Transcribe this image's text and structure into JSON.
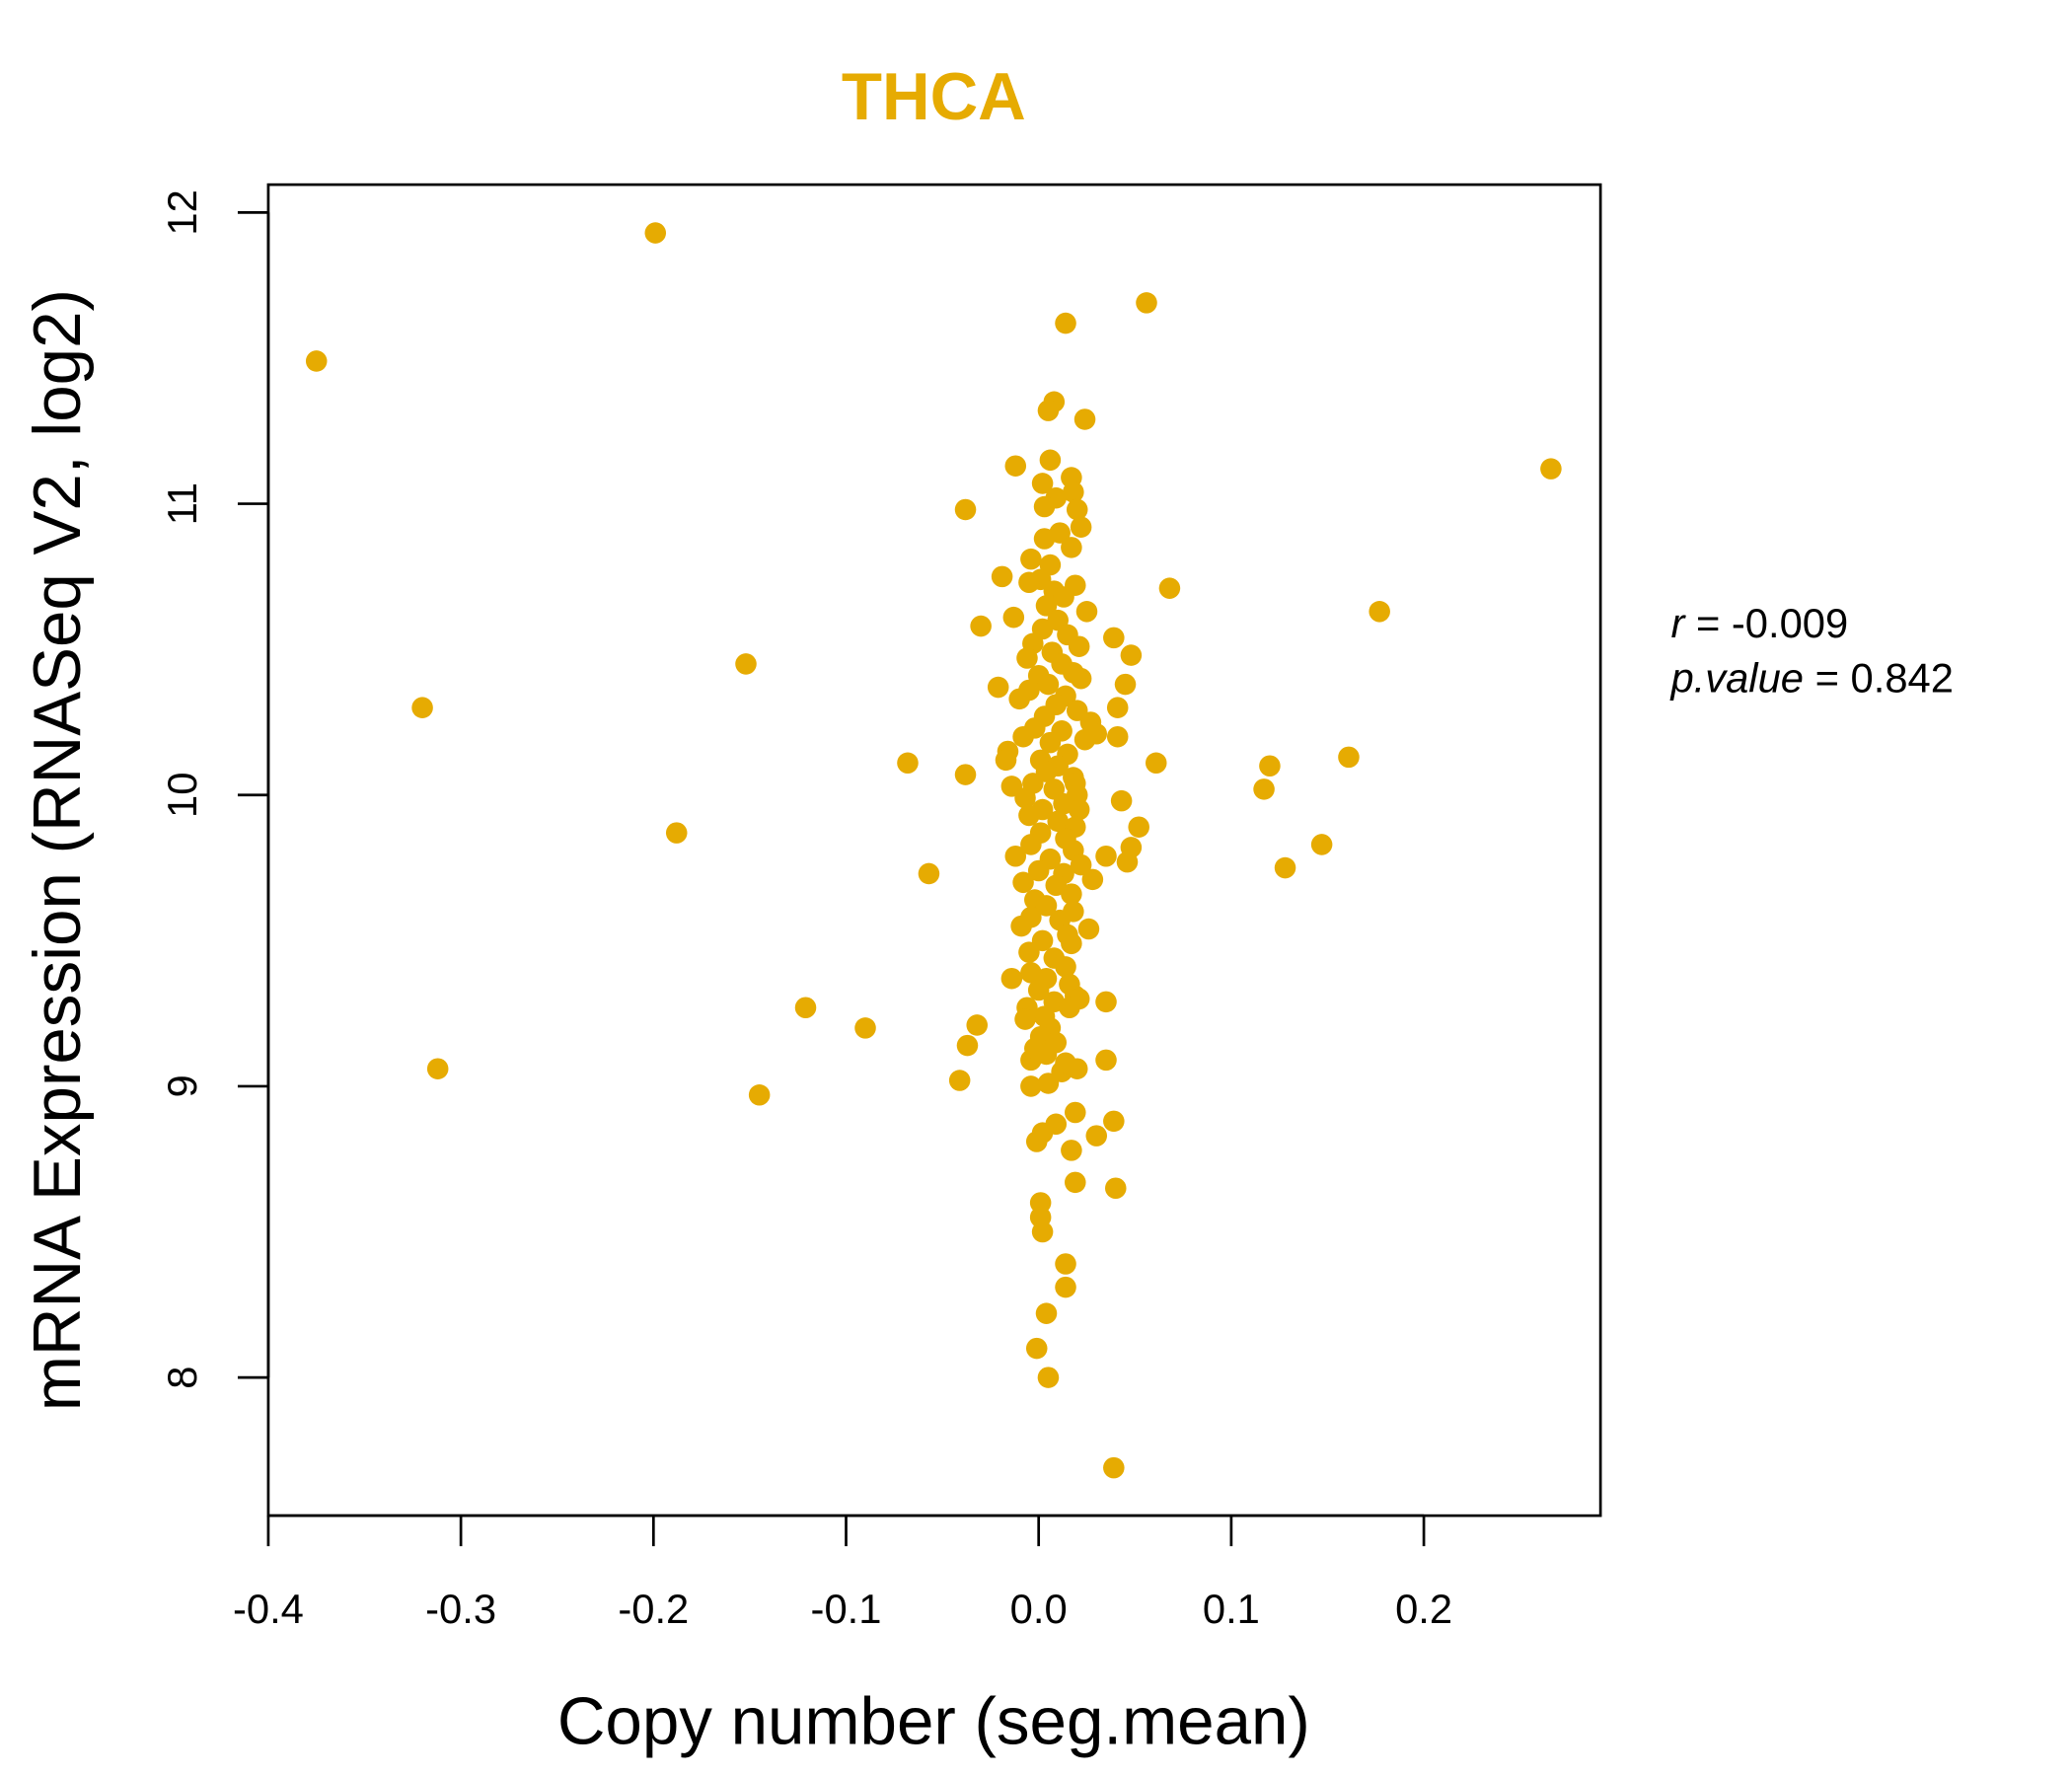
{
  "chart_data": {
    "type": "scatter",
    "title": "THCA",
    "xlabel": "Copy number (seg.mean)",
    "ylabel": "mRNA Expression (RNASeq V2, log2)",
    "xlim": [
      -0.4,
      0.29
    ],
    "ylim": [
      7.55,
      12.1
    ],
    "xticks": [
      -0.4,
      -0.3,
      -0.2,
      -0.1,
      0.0,
      0.1,
      0.2
    ],
    "xtick_labels": [
      "-0.4",
      "-0.3",
      "-0.2",
      "-0.1",
      "0.0",
      "0.1",
      "0.2"
    ],
    "yticks": [
      8,
      9,
      10,
      11,
      12
    ],
    "ytick_labels": [
      "8",
      "9",
      "10",
      "11",
      "12"
    ],
    "grid": false,
    "point_color": "#E6AB02",
    "stats": {
      "r_label": "r",
      "r_value": "-0.009",
      "p_label": "p.value",
      "p_value": "0.842"
    },
    "points": [
      [
        -0.375,
        11.49
      ],
      [
        -0.199,
        11.93
      ],
      [
        -0.32,
        10.3
      ],
      [
        -0.312,
        9.06
      ],
      [
        -0.188,
        9.87
      ],
      [
        -0.152,
        10.45
      ],
      [
        -0.145,
        8.97
      ],
      [
        -0.121,
        9.27
      ],
      [
        -0.09,
        9.2
      ],
      [
        -0.068,
        10.11
      ],
      [
        -0.057,
        9.73
      ],
      [
        -0.038,
        10.98
      ],
      [
        -0.038,
        10.07
      ],
      [
        -0.041,
        9.02
      ],
      [
        -0.037,
        9.14
      ],
      [
        -0.032,
        9.21
      ],
      [
        -0.03,
        10.58
      ],
      [
        -0.019,
        10.75
      ],
      [
        -0.021,
        10.37
      ],
      [
        -0.012,
        11.13
      ],
      [
        0.056,
        11.69
      ],
      [
        0.014,
        11.62
      ],
      [
        0.008,
        11.35
      ],
      [
        0.005,
        11.32
      ],
      [
        0.024,
        11.29
      ],
      [
        0.006,
        11.15
      ],
      [
        0.017,
        11.09
      ],
      [
        0.068,
        10.71
      ],
      [
        0.039,
        10.54
      ],
      [
        0.048,
        10.48
      ],
      [
        0.045,
        10.38
      ],
      [
        0.041,
        10.3
      ],
      [
        0.041,
        10.2
      ],
      [
        0.061,
        10.11
      ],
      [
        0.043,
        9.98
      ],
      [
        0.052,
        9.89
      ],
      [
        0.048,
        9.82
      ],
      [
        0.046,
        9.77
      ],
      [
        0.035,
        9.79
      ],
      [
        0.028,
        9.71
      ],
      [
        0.026,
        9.54
      ],
      [
        0.035,
        9.29
      ],
      [
        0.035,
        9.09
      ],
      [
        0.039,
        8.88
      ],
      [
        0.03,
        8.83
      ],
      [
        0.04,
        8.65
      ],
      [
        0.039,
        7.69
      ],
      [
        0.266,
        11.12
      ],
      [
        0.177,
        10.63
      ],
      [
        0.161,
        10.13
      ],
      [
        0.12,
        10.1
      ],
      [
        0.117,
        10.02
      ],
      [
        0.147,
        9.83
      ],
      [
        0.128,
        9.75
      ],
      [
        0.019,
        8.91
      ],
      [
        0.017,
        8.78
      ],
      [
        0.019,
        8.67
      ],
      [
        0.001,
        8.6
      ],
      [
        0.001,
        8.55
      ],
      [
        0.002,
        8.5
      ],
      [
        0.014,
        8.39
      ],
      [
        0.014,
        8.31
      ],
      [
        0.004,
        8.22
      ],
      [
        -0.001,
        8.1
      ],
      [
        0.005,
        8.0
      ],
      [
        -0.001,
        8.81
      ],
      [
        0.009,
        8.87
      ],
      [
        0.002,
        8.84
      ],
      [
        -0.004,
        9.0
      ],
      [
        0.005,
        9.01
      ],
      [
        0.012,
        9.05
      ],
      [
        0.02,
        9.06
      ],
      [
        0.014,
        9.08
      ],
      [
        -0.004,
        9.09
      ],
      [
        0.002,
        11.07
      ],
      [
        0.009,
        11.02
      ],
      [
        0.003,
        10.99
      ],
      [
        0.018,
        11.04
      ],
      [
        0.02,
        10.98
      ],
      [
        0.022,
        10.92
      ],
      [
        0.011,
        10.9
      ],
      [
        0.003,
        10.88
      ],
      [
        0.017,
        10.85
      ],
      [
        -0.004,
        10.81
      ],
      [
        0.006,
        10.79
      ],
      [
        0.001,
        10.74
      ],
      [
        0.019,
        10.72
      ],
      [
        0.008,
        10.7
      ],
      [
        -0.005,
        10.73
      ],
      [
        0.013,
        10.68
      ],
      [
        0.004,
        10.65
      ],
      [
        0.025,
        10.63
      ],
      [
        -0.013,
        10.61
      ],
      [
        0.01,
        10.6
      ],
      [
        0.002,
        10.57
      ],
      [
        0.015,
        10.55
      ],
      [
        -0.003,
        10.52
      ],
      [
        0.021,
        10.51
      ],
      [
        0.007,
        10.49
      ],
      [
        -0.006,
        10.47
      ],
      [
        0.012,
        10.45
      ],
      [
        0.018,
        10.42
      ],
      [
        0.0,
        10.41
      ],
      [
        0.022,
        10.4
      ],
      [
        0.005,
        10.38
      ],
      [
        -0.005,
        10.36
      ],
      [
        0.014,
        10.34
      ],
      [
        -0.01,
        10.33
      ],
      [
        0.009,
        10.31
      ],
      [
        0.02,
        10.29
      ],
      [
        0.003,
        10.27
      ],
      [
        0.027,
        10.25
      ],
      [
        -0.002,
        10.23
      ],
      [
        0.012,
        10.22
      ],
      [
        0.03,
        10.21
      ],
      [
        -0.008,
        10.2
      ],
      [
        0.006,
        10.18
      ],
      [
        0.024,
        10.19
      ],
      [
        -0.016,
        10.15
      ],
      [
        0.015,
        10.14
      ],
      [
        0.001,
        10.12
      ],
      [
        -0.017,
        10.12
      ],
      [
        0.01,
        10.1
      ],
      [
        0.004,
        10.08
      ],
      [
        0.018,
        10.06
      ],
      [
        -0.003,
        10.04
      ],
      [
        0.019,
        10.04
      ],
      [
        -0.014,
        10.03
      ],
      [
        0.008,
        10.02
      ],
      [
        0.02,
        10.0
      ],
      [
        -0.007,
        9.99
      ],
      [
        0.013,
        9.97
      ],
      [
        0.002,
        9.95
      ],
      [
        0.021,
        9.95
      ],
      [
        -0.005,
        9.93
      ],
      [
        0.01,
        9.91
      ],
      [
        0.019,
        9.89
      ],
      [
        0.001,
        9.87
      ],
      [
        0.014,
        9.85
      ],
      [
        -0.004,
        9.83
      ],
      [
        0.018,
        9.81
      ],
      [
        -0.012,
        9.79
      ],
      [
        0.006,
        9.78
      ],
      [
        0.022,
        9.76
      ],
      [
        0.0,
        9.74
      ],
      [
        0.013,
        9.73
      ],
      [
        -0.008,
        9.7
      ],
      [
        0.009,
        9.69
      ],
      [
        0.017,
        9.66
      ],
      [
        -0.002,
        9.64
      ],
      [
        0.004,
        9.62
      ],
      [
        0.018,
        9.6
      ],
      [
        -0.004,
        9.58
      ],
      [
        0.011,
        9.57
      ],
      [
        -0.009,
        9.55
      ],
      [
        0.015,
        9.52
      ],
      [
        0.002,
        9.5
      ],
      [
        0.017,
        9.49
      ],
      [
        -0.005,
        9.46
      ],
      [
        0.008,
        9.44
      ],
      [
        0.014,
        9.41
      ],
      [
        -0.004,
        9.39
      ],
      [
        0.004,
        9.37
      ],
      [
        -0.014,
        9.37
      ],
      [
        0.016,
        9.35
      ],
      [
        0.0,
        9.33
      ],
      [
        0.019,
        9.31
      ],
      [
        0.021,
        9.3
      ],
      [
        0.008,
        9.29
      ],
      [
        -0.006,
        9.27
      ],
      [
        0.016,
        9.27
      ],
      [
        0.003,
        9.24
      ],
      [
        -0.007,
        9.23
      ],
      [
        0.006,
        9.2
      ],
      [
        0.001,
        9.17
      ],
      [
        0.009,
        9.15
      ],
      [
        -0.002,
        9.13
      ],
      [
        0.004,
        9.11
      ]
    ]
  }
}
